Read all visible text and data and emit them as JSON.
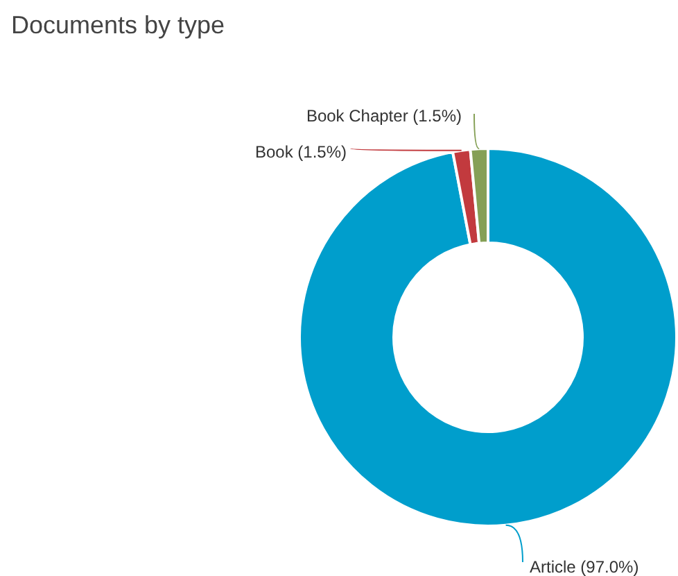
{
  "chart_data": {
    "type": "donut",
    "title": "Documents by type",
    "categories": [
      "Article",
      "Book",
      "Book Chapter"
    ],
    "values": [
      97.0,
      1.5,
      1.5
    ],
    "colors": [
      "#009ecc",
      "#c23a3e",
      "#85a056"
    ],
    "value_labels": [
      "(97.0%)",
      "(1.5%)",
      "(1.5%)"
    ],
    "legend": false
  }
}
